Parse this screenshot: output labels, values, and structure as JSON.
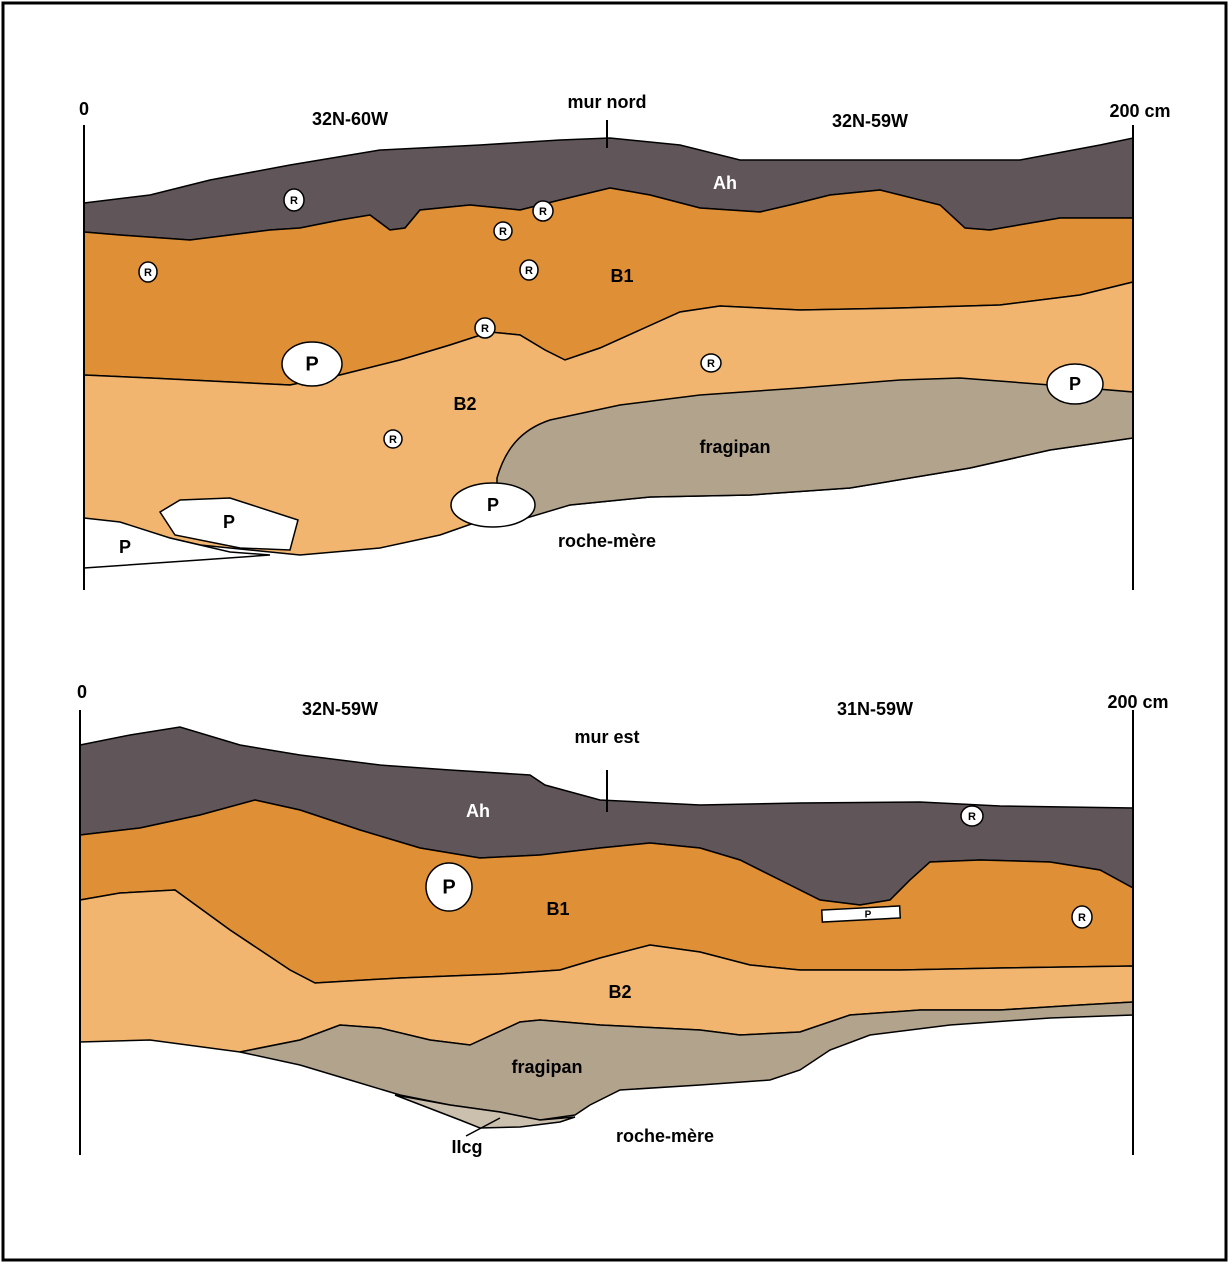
{
  "profiles": [
    {
      "scale_start": "0",
      "scale_end": "200 cm",
      "units": [
        "32N-60W",
        "32N-59W"
      ],
      "wall": "mur nord",
      "horizons": {
        "ah": "Ah",
        "b1": "B1",
        "b2": "B2",
        "fragipan": "fragipan",
        "bedrock": "roche-mère"
      },
      "stones": [
        "R",
        "R",
        "R",
        "R",
        "R",
        "R",
        "R",
        "R",
        "P",
        "P",
        "P",
        "P",
        "P"
      ]
    },
    {
      "scale_start": "0",
      "scale_end": "200 cm",
      "units": [
        "32N-59W",
        "31N-59W"
      ],
      "wall": "mur est",
      "horizons": {
        "ah": "Ah",
        "b1": "B1",
        "b2": "B2",
        "fragipan": "fragipan",
        "bedrock": "roche-mère",
        "iicg": "IIcg"
      },
      "stones": [
        "R",
        "R",
        "P",
        "P"
      ]
    }
  ]
}
